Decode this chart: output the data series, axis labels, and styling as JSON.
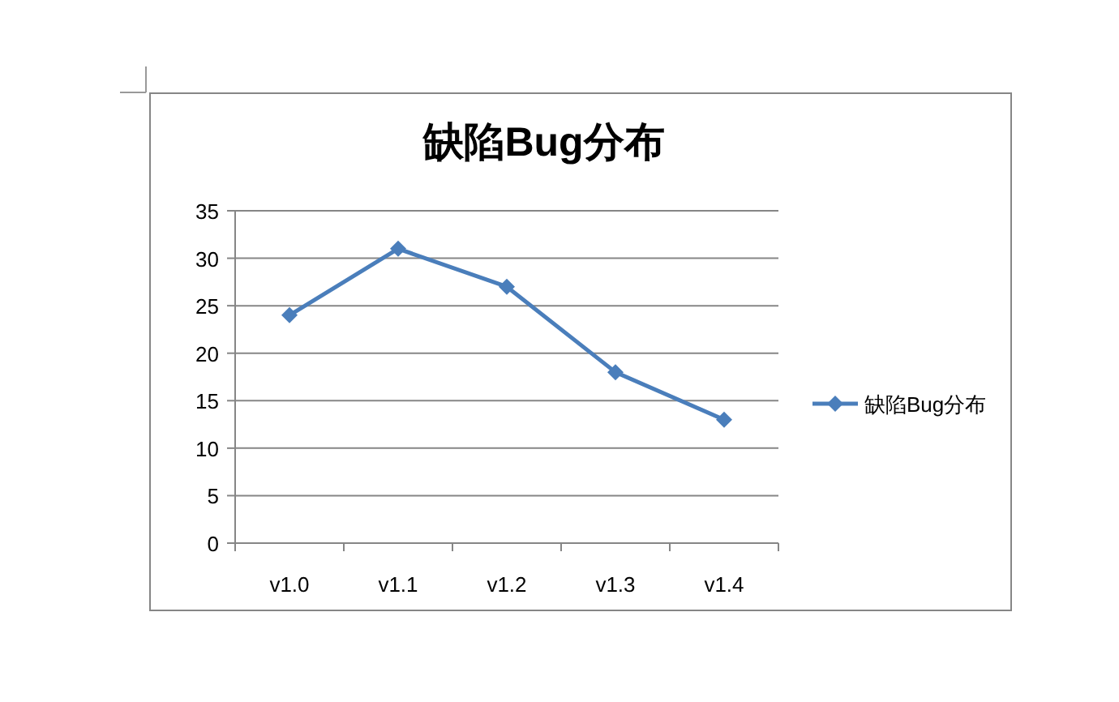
{
  "chart_data": {
    "type": "line",
    "title": "缺陷Bug分布",
    "categories": [
      "v1.0",
      "v1.1",
      "v1.2",
      "v1.3",
      "v1.4"
    ],
    "series": [
      {
        "name": "缺陷Bug分布",
        "color": "#4a7ebb",
        "values": [
          24,
          31,
          27,
          18,
          13
        ]
      }
    ],
    "ylim": [
      0,
      35
    ],
    "yticks": [
      0,
      5,
      10,
      15,
      20,
      25,
      30,
      35
    ],
    "grid": "y",
    "legend": "right",
    "marker": "diamond"
  }
}
